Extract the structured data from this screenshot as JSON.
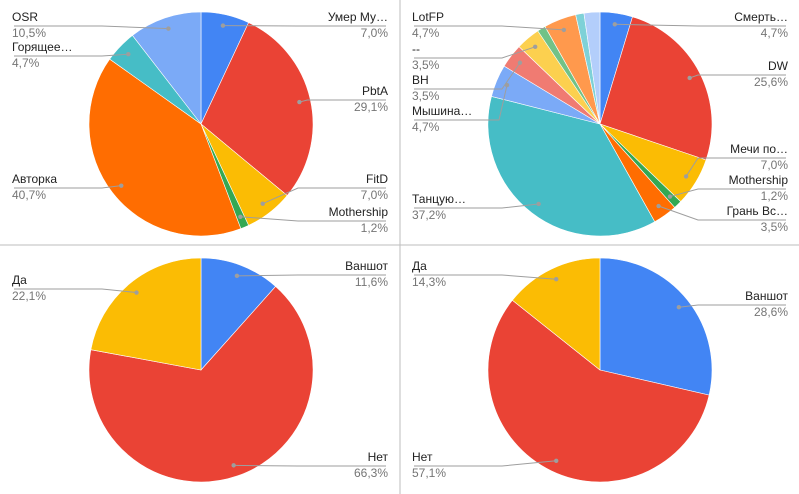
{
  "colors": {
    "blue": "#4285f4",
    "red": "#ea4335",
    "yellow": "#fbbc04",
    "green": "#34a853",
    "orange": "#ff6d01",
    "teal": "#46bdc6",
    "light_blue": "#7baaf7",
    "light_red": "#f07b72",
    "light_yellow": "#fcd04f",
    "light_green": "#71c287",
    "light_orange": "#ff994d",
    "light_teal": "#7ed1d7",
    "pale_blue": "#b3cefb"
  },
  "chart_data": [
    {
      "type": "pie",
      "slices": [
        {
          "label": "Умер Му…",
          "value": 7.0,
          "pct_label": "7,0%",
          "color": "#4285f4"
        },
        {
          "label": "PbtA",
          "value": 29.1,
          "pct_label": "29,1%",
          "color": "#ea4335"
        },
        {
          "label": "FitD",
          "value": 7.0,
          "pct_label": "7,0%",
          "color": "#fbbc04"
        },
        {
          "label": "Mothership",
          "value": 1.2,
          "pct_label": "1,2%",
          "color": "#34a853"
        },
        {
          "label": "Авторка",
          "value": 40.7,
          "pct_label": "40,7%",
          "color": "#ff6d01"
        },
        {
          "label": "Горящее…",
          "value": 4.7,
          "pct_label": "4,7%",
          "color": "#46bdc6"
        },
        {
          "label": "OSR",
          "value": 10.5,
          "pct_label": "10,5%",
          "color": "#7baaf7"
        }
      ]
    },
    {
      "type": "pie",
      "slices": [
        {
          "label": "Смерть…",
          "value": 4.7,
          "pct_label": "4,7%",
          "color": "#4285f4"
        },
        {
          "label": "DW",
          "value": 25.6,
          "pct_label": "25,6%",
          "color": "#ea4335"
        },
        {
          "label": "Мечи по…",
          "value": 7.0,
          "pct_label": "7,0%",
          "color": "#fbbc04"
        },
        {
          "label": "Mothership",
          "value": 1.2,
          "pct_label": "1,2%",
          "color": "#34a853"
        },
        {
          "label": "Грань Вс…",
          "value": 3.5,
          "pct_label": "3,5%",
          "color": "#ff6d01"
        },
        {
          "label": "Танцую…",
          "value": 37.2,
          "pct_label": "37,2%",
          "color": "#46bdc6"
        },
        {
          "label": "Мышина…",
          "value": 4.7,
          "pct_label": "4,7%",
          "color": "#7baaf7"
        },
        {
          "label": "BH",
          "value": 3.5,
          "pct_label": "3,5%",
          "color": "#f07b72"
        },
        {
          "label": "--",
          "value": 3.5,
          "pct_label": "3,5%",
          "color": "#fcd04f"
        },
        {
          "label": "",
          "value": 1.2,
          "pct_label": "",
          "color": "#71c287"
        },
        {
          "label": "LotFP",
          "value": 4.7,
          "pct_label": "4,7%",
          "color": "#ff994d"
        },
        {
          "label": "",
          "value": 1.2,
          "pct_label": "",
          "color": "#7ed1d7"
        },
        {
          "label": "",
          "value": 2.3,
          "pct_label": "",
          "color": "#b3cefb"
        }
      ]
    },
    {
      "type": "pie",
      "slices": [
        {
          "label": "Ваншот",
          "value": 11.6,
          "pct_label": "11,6%",
          "color": "#4285f4"
        },
        {
          "label": "Нет",
          "value": 66.3,
          "pct_label": "66,3%",
          "color": "#ea4335"
        },
        {
          "label": "Да",
          "value": 22.1,
          "pct_label": "22,1%",
          "color": "#fbbc04"
        }
      ]
    },
    {
      "type": "pie",
      "slices": [
        {
          "label": "Ваншот",
          "value": 28.6,
          "pct_label": "28,6%",
          "color": "#4285f4"
        },
        {
          "label": "Нет",
          "value": 57.1,
          "pct_label": "57,1%",
          "color": "#ea4335"
        },
        {
          "label": "Да",
          "value": 14.3,
          "pct_label": "14,3%",
          "color": "#fbbc04"
        }
      ]
    }
  ]
}
